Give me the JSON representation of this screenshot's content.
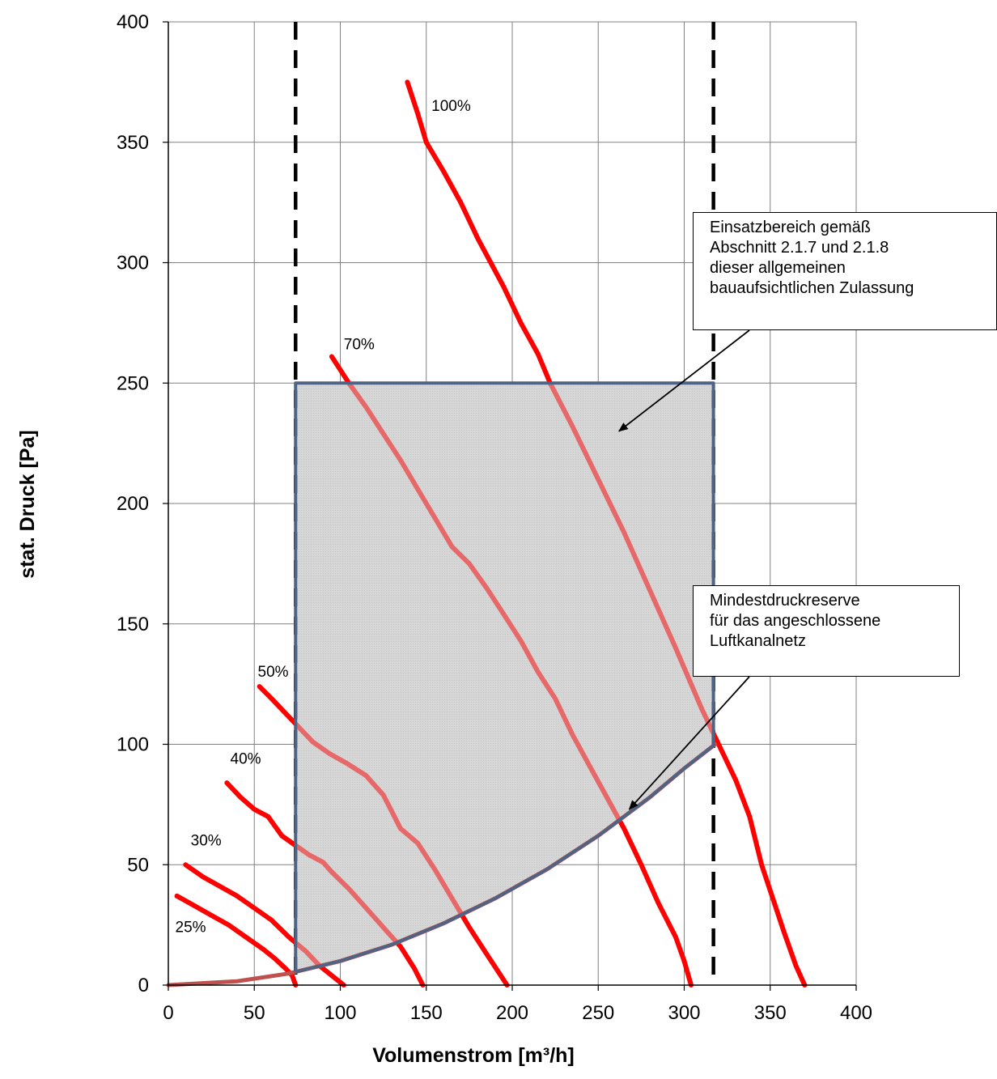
{
  "chart_data": {
    "type": "line",
    "xlabel": "Volumenstrom [m³/h]",
    "ylabel": "stat. Druck [Pa]",
    "xlim": [
      0,
      400
    ],
    "ylim": [
      0,
      400
    ],
    "xticks": [
      0,
      50,
      100,
      150,
      200,
      250,
      300,
      350,
      400
    ],
    "yticks": [
      0,
      50,
      100,
      150,
      200,
      250,
      300,
      350,
      400
    ],
    "grid": true,
    "colors": {
      "fan_curve": "#ff0000",
      "system_curve": "#c0504d",
      "area_border": "#4f6384",
      "area_fill": "#d8d8d8",
      "limit_line": "#000000"
    },
    "series": [
      {
        "name": "25%",
        "points": [
          [
            5,
            37
          ],
          [
            15,
            33
          ],
          [
            25,
            29
          ],
          [
            35,
            25
          ],
          [
            45,
            20
          ],
          [
            55,
            15
          ],
          [
            62,
            11
          ],
          [
            68,
            7
          ],
          [
            72,
            4
          ],
          [
            74,
            0
          ]
        ]
      },
      {
        "name": "30%",
        "points": [
          [
            10,
            50
          ],
          [
            20,
            45
          ],
          [
            30,
            41
          ],
          [
            40,
            37
          ],
          [
            50,
            32
          ],
          [
            60,
            27
          ],
          [
            70,
            20
          ],
          [
            80,
            14
          ],
          [
            88,
            8
          ],
          [
            95,
            4
          ],
          [
            102,
            0
          ]
        ]
      },
      {
        "name": "40%",
        "points": [
          [
            34,
            84
          ],
          [
            42,
            78
          ],
          [
            50,
            73
          ],
          [
            58,
            70
          ],
          [
            66,
            62
          ],
          [
            74,
            58
          ],
          [
            82,
            54
          ],
          [
            90,
            51
          ],
          [
            95,
            47
          ],
          [
            105,
            40
          ],
          [
            115,
            32
          ],
          [
            125,
            24
          ],
          [
            135,
            16
          ],
          [
            143,
            7
          ],
          [
            148,
            0
          ]
        ]
      },
      {
        "name": "50%",
        "points": [
          [
            53,
            124
          ],
          [
            60,
            119
          ],
          [
            68,
            113
          ],
          [
            76,
            107
          ],
          [
            84,
            101
          ],
          [
            94,
            96
          ],
          [
            104,
            92
          ],
          [
            115,
            87
          ],
          [
            125,
            79
          ],
          [
            130,
            72
          ],
          [
            135,
            65
          ],
          [
            145,
            59
          ],
          [
            155,
            48
          ],
          [
            165,
            36
          ],
          [
            175,
            24
          ],
          [
            185,
            13
          ],
          [
            197,
            0
          ]
        ]
      },
      {
        "name": "70%",
        "points": [
          [
            95,
            261
          ],
          [
            105,
            250
          ],
          [
            115,
            240
          ],
          [
            125,
            229
          ],
          [
            135,
            218
          ],
          [
            145,
            206
          ],
          [
            155,
            194
          ],
          [
            165,
            182
          ],
          [
            175,
            175
          ],
          [
            185,
            165
          ],
          [
            195,
            154
          ],
          [
            205,
            143
          ],
          [
            215,
            130
          ],
          [
            225,
            119
          ],
          [
            235,
            104
          ],
          [
            245,
            91
          ],
          [
            255,
            78
          ],
          [
            265,
            65
          ],
          [
            275,
            50
          ],
          [
            285,
            34
          ],
          [
            295,
            20
          ],
          [
            300,
            10
          ],
          [
            304,
            0
          ]
        ]
      },
      {
        "name": "100%",
        "points": [
          [
            139,
            375
          ],
          [
            145,
            362
          ],
          [
            150,
            350
          ],
          [
            160,
            338
          ],
          [
            170,
            325
          ],
          [
            180,
            310
          ],
          [
            195,
            290
          ],
          [
            205,
            275
          ],
          [
            215,
            262
          ],
          [
            222,
            250
          ],
          [
            235,
            232
          ],
          [
            250,
            210
          ],
          [
            265,
            188
          ],
          [
            280,
            164
          ],
          [
            295,
            140
          ],
          [
            310,
            115
          ],
          [
            320,
            100
          ],
          [
            330,
            85
          ],
          [
            338,
            70
          ],
          [
            345,
            50
          ],
          [
            352,
            35
          ],
          [
            358,
            22
          ],
          [
            365,
            8
          ],
          [
            370,
            0
          ]
        ]
      }
    ],
    "system_curve": {
      "points": [
        [
          0,
          0
        ],
        [
          40,
          1.6
        ],
        [
          70,
          4.8
        ],
        [
          100,
          10
        ],
        [
          130,
          16.8
        ],
        [
          160,
          25.6
        ],
        [
          190,
          36
        ],
        [
          220,
          48
        ],
        [
          250,
          62
        ],
        [
          280,
          78
        ],
        [
          300,
          90
        ],
        [
          318,
          100
        ]
      ]
    },
    "operating_area": {
      "x_min": 74,
      "x_max": 317,
      "y_max": 250
    },
    "limit_lines_x": [
      74,
      317
    ],
    "callouts": [
      {
        "text": "Einsatzbereich gemäß\nAbschnitt 2.1.7 und 2.1.8\ndieser allgemeinen\nbauaufsichtlichen Zulassung",
        "arrow_to": [
          262,
          230
        ]
      },
      {
        "text": "Mindestdruckreserve\nfür das angeschlossene\nLuftkanalnetz",
        "arrow_to": [
          268,
          73
        ]
      }
    ]
  }
}
